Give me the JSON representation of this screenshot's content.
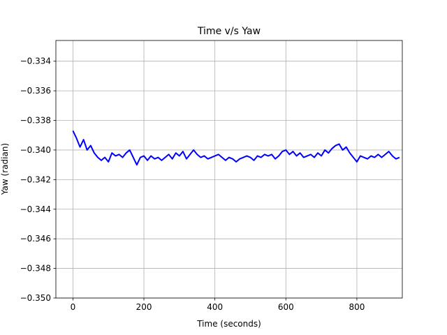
{
  "chart_data": {
    "type": "line",
    "title": "Time v/s Yaw",
    "xlabel": "Time (seconds)",
    "ylabel": "Yaw (radian)",
    "xlim": [
      -48,
      928
    ],
    "ylim": [
      -0.35,
      -0.3326
    ],
    "xticks": [
      0,
      200,
      400,
      600,
      800
    ],
    "xtick_labels": [
      "0",
      "200",
      "400",
      "600",
      "800"
    ],
    "yticks": [
      -0.35,
      -0.348,
      -0.346,
      -0.344,
      -0.342,
      -0.34,
      -0.338,
      -0.336,
      -0.334
    ],
    "ytick_labels": [
      "−0.350",
      "−0.348",
      "−0.346",
      "−0.344",
      "−0.342",
      "−0.340",
      "−0.338",
      "−0.336",
      "−0.334"
    ],
    "grid": true,
    "series": [
      {
        "name": "yaw",
        "color": "#0000ff",
        "x": [
          0,
          10,
          20,
          30,
          40,
          50,
          60,
          70,
          80,
          90,
          100,
          110,
          120,
          130,
          140,
          150,
          160,
          170,
          180,
          190,
          200,
          210,
          220,
          230,
          240,
          250,
          260,
          270,
          280,
          290,
          300,
          310,
          320,
          330,
          340,
          350,
          360,
          370,
          380,
          390,
          400,
          410,
          420,
          430,
          440,
          450,
          460,
          470,
          480,
          490,
          500,
          510,
          520,
          530,
          540,
          550,
          560,
          570,
          580,
          590,
          600,
          610,
          620,
          630,
          640,
          650,
          660,
          670,
          680,
          690,
          700,
          710,
          720,
          730,
          740,
          750,
          760,
          770,
          780,
          790,
          800,
          810,
          820,
          830,
          840,
          850,
          860,
          870,
          880,
          890,
          900,
          910,
          920
        ],
        "y": [
          -0.3387,
          -0.3392,
          -0.3398,
          -0.3393,
          -0.34,
          -0.3397,
          -0.3402,
          -0.3405,
          -0.3407,
          -0.3405,
          -0.3408,
          -0.3402,
          -0.3404,
          -0.3403,
          -0.3405,
          -0.3402,
          -0.34,
          -0.3405,
          -0.341,
          -0.3405,
          -0.3404,
          -0.3407,
          -0.3404,
          -0.3406,
          -0.3405,
          -0.3407,
          -0.3405,
          -0.3403,
          -0.3406,
          -0.3402,
          -0.3404,
          -0.3401,
          -0.3406,
          -0.3403,
          -0.34,
          -0.3403,
          -0.3405,
          -0.3404,
          -0.3406,
          -0.3405,
          -0.3404,
          -0.3403,
          -0.3405,
          -0.3407,
          -0.3405,
          -0.3406,
          -0.3408,
          -0.3406,
          -0.3405,
          -0.3404,
          -0.3405,
          -0.3407,
          -0.3404,
          -0.3405,
          -0.3403,
          -0.3404,
          -0.3403,
          -0.3406,
          -0.3404,
          -0.3401,
          -0.34,
          -0.3403,
          -0.3401,
          -0.3404,
          -0.3402,
          -0.3405,
          -0.3404,
          -0.3403,
          -0.3405,
          -0.3402,
          -0.3404,
          -0.34,
          -0.3402,
          -0.3399,
          -0.3397,
          -0.3396,
          -0.34,
          -0.3398,
          -0.3402,
          -0.3405,
          -0.3408,
          -0.3404,
          -0.3405,
          -0.3406,
          -0.3404,
          -0.3405,
          -0.3403,
          -0.3405,
          -0.3403,
          -0.3401,
          -0.3404,
          -0.3406,
          -0.3405
        ]
      }
    ]
  }
}
